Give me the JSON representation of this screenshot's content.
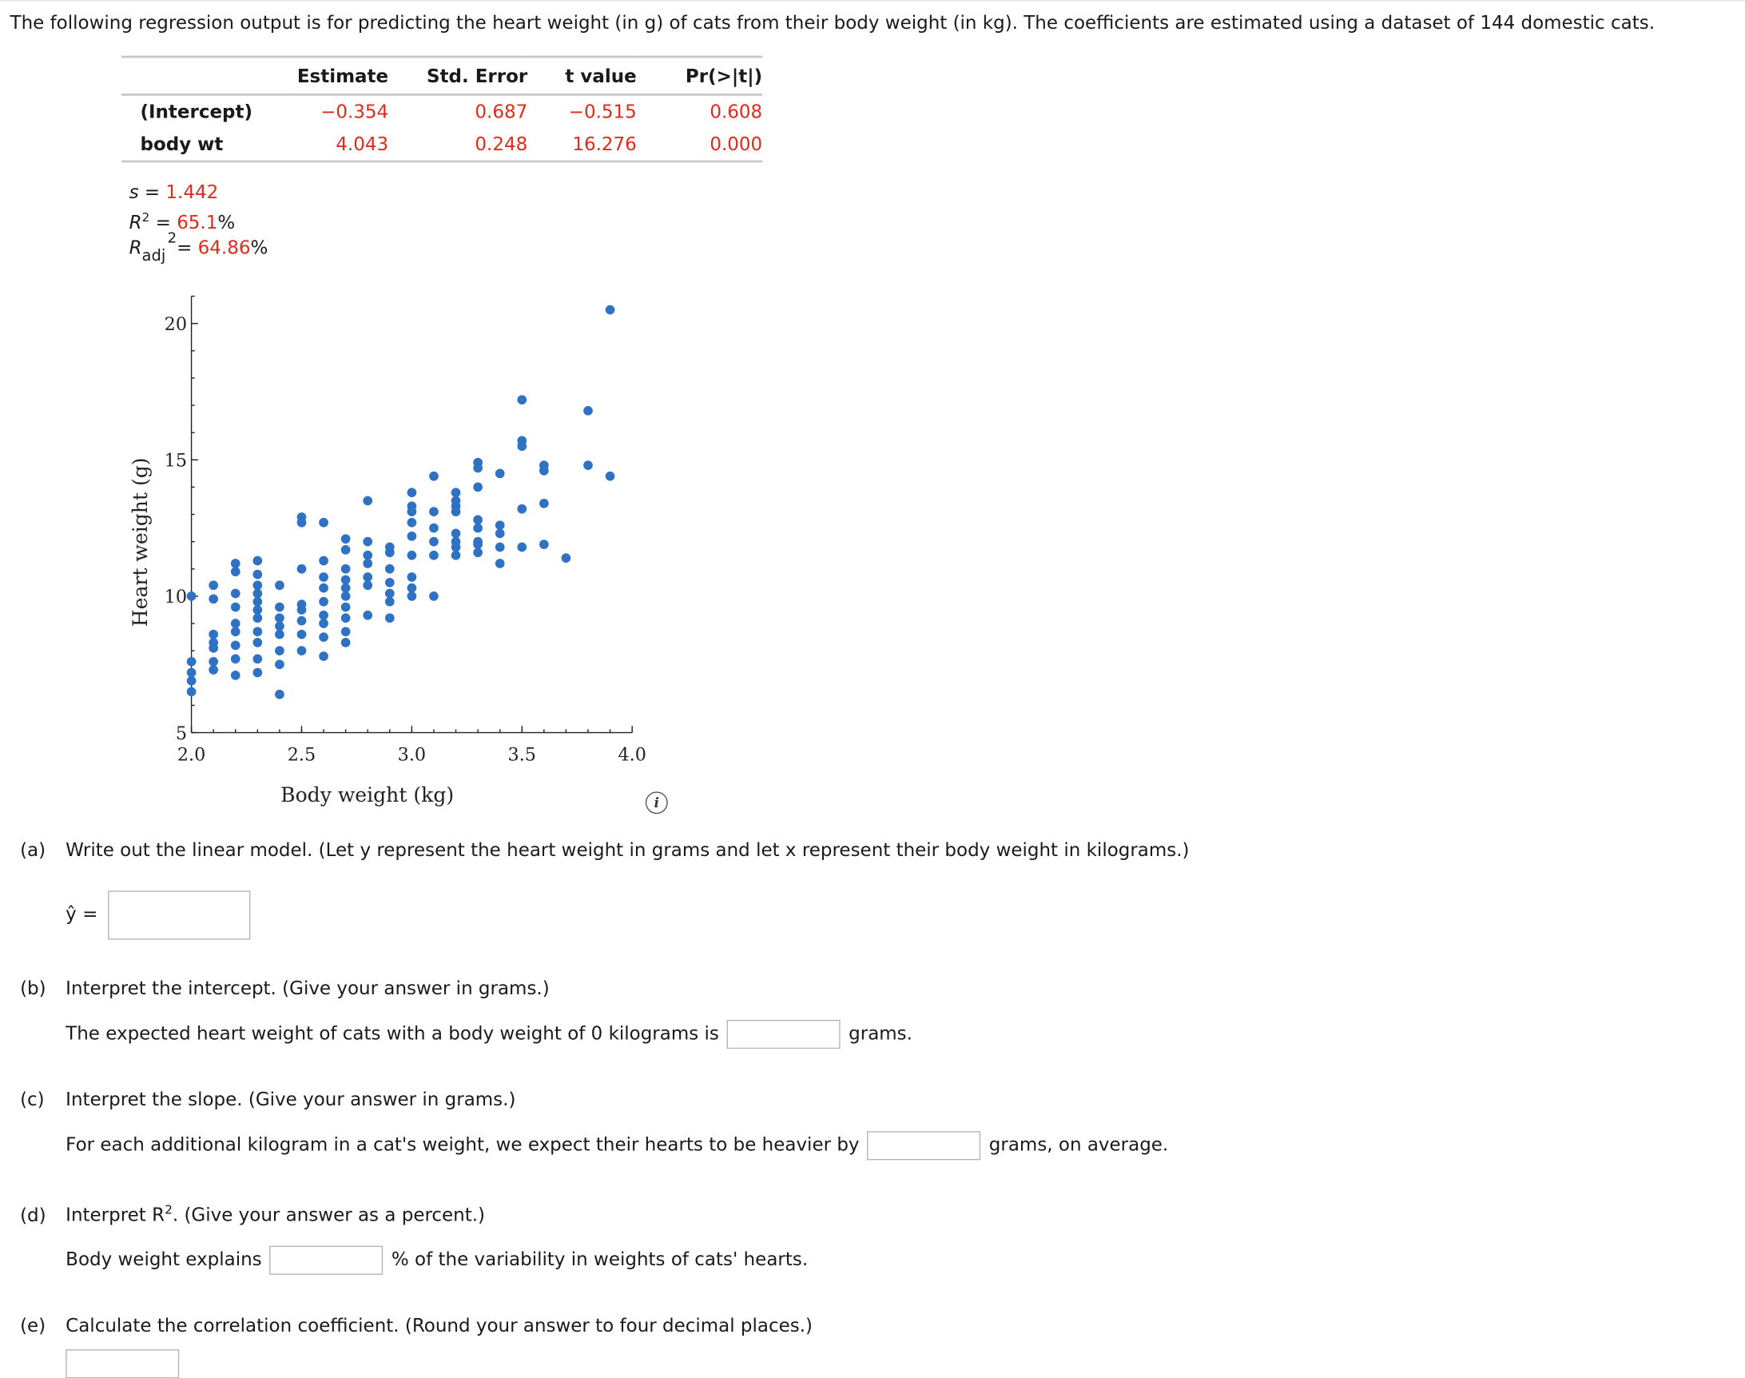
{
  "intro_text": "The following regression output is for predicting the heart weight (in g) of cats from their body weight (in kg). The coefficients are estimated using a dataset of 144 domestic cats.",
  "regression_table": {
    "headers": [
      "",
      "Estimate",
      "Std. Error",
      "t value",
      "Pr(>|t|)"
    ],
    "rows": [
      {
        "label": "(Intercept)",
        "estimate": "−0.354",
        "std_error": "0.687",
        "t_value": "−0.515",
        "p_value": "0.608"
      },
      {
        "label": "body wt",
        "estimate": "4.043",
        "std_error": "0.248",
        "t_value": "16.276",
        "p_value": "0.000"
      }
    ]
  },
  "stats": {
    "s_label": "s =",
    "s_value": "1.442",
    "r2_label": "R",
    "r2_sup": "2",
    "r2_eq": "=",
    "r2_value": "65.1",
    "r2_unit": "%",
    "radj_label": "R",
    "radj_sub": "adj",
    "radj_sup": "2",
    "radj_eq": "=",
    "radj_value": "64.86",
    "radj_unit": "%"
  },
  "chart_data": {
    "type": "scatter",
    "xlabel": "Body weight (kg)",
    "ylabel": "Heart weight (g)",
    "xlim": [
      2.0,
      4.0
    ],
    "ylim": [
      5,
      21
    ],
    "x_ticks": [
      "2.0",
      "2.5",
      "3.0",
      "3.5",
      "4.0"
    ],
    "y_ticks": [
      "5",
      "10",
      "15",
      "20"
    ],
    "marker_color": "#2f72c4",
    "points": [
      [
        2.0,
        6.5
      ],
      [
        2.0,
        6.9
      ],
      [
        2.0,
        7.2
      ],
      [
        2.0,
        7.6
      ],
      [
        2.0,
        10.0
      ],
      [
        2.1,
        7.3
      ],
      [
        2.1,
        7.6
      ],
      [
        2.1,
        8.1
      ],
      [
        2.1,
        8.3
      ],
      [
        2.1,
        8.6
      ],
      [
        2.1,
        9.9
      ],
      [
        2.1,
        10.4
      ],
      [
        2.2,
        7.1
      ],
      [
        2.2,
        7.7
      ],
      [
        2.2,
        8.2
      ],
      [
        2.2,
        8.7
      ],
      [
        2.2,
        9.0
      ],
      [
        2.2,
        9.6
      ],
      [
        2.2,
        10.1
      ],
      [
        2.2,
        10.9
      ],
      [
        2.2,
        11.2
      ],
      [
        2.3,
        7.2
      ],
      [
        2.3,
        7.7
      ],
      [
        2.3,
        8.3
      ],
      [
        2.3,
        8.7
      ],
      [
        2.3,
        9.2
      ],
      [
        2.3,
        9.5
      ],
      [
        2.3,
        9.8
      ],
      [
        2.3,
        10.1
      ],
      [
        2.3,
        10.4
      ],
      [
        2.3,
        10.8
      ],
      [
        2.3,
        11.3
      ],
      [
        2.4,
        6.4
      ],
      [
        2.4,
        7.5
      ],
      [
        2.4,
        8.0
      ],
      [
        2.4,
        8.6
      ],
      [
        2.4,
        8.9
      ],
      [
        2.4,
        9.2
      ],
      [
        2.4,
        9.6
      ],
      [
        2.4,
        10.4
      ],
      [
        2.5,
        8.0
      ],
      [
        2.5,
        8.6
      ],
      [
        2.5,
        9.1
      ],
      [
        2.5,
        9.5
      ],
      [
        2.5,
        9.7
      ],
      [
        2.5,
        11.0
      ],
      [
        2.5,
        12.7
      ],
      [
        2.5,
        12.9
      ],
      [
        2.6,
        7.8
      ],
      [
        2.6,
        8.5
      ],
      [
        2.6,
        9.0
      ],
      [
        2.6,
        9.3
      ],
      [
        2.6,
        9.8
      ],
      [
        2.6,
        10.3
      ],
      [
        2.6,
        10.7
      ],
      [
        2.6,
        11.3
      ],
      [
        2.6,
        12.7
      ],
      [
        2.7,
        8.3
      ],
      [
        2.7,
        8.7
      ],
      [
        2.7,
        9.2
      ],
      [
        2.7,
        9.6
      ],
      [
        2.7,
        10.0
      ],
      [
        2.7,
        10.3
      ],
      [
        2.7,
        10.6
      ],
      [
        2.7,
        11.0
      ],
      [
        2.7,
        11.7
      ],
      [
        2.7,
        12.1
      ],
      [
        2.8,
        9.3
      ],
      [
        2.8,
        10.4
      ],
      [
        2.8,
        10.7
      ],
      [
        2.8,
        11.2
      ],
      [
        2.8,
        11.5
      ],
      [
        2.8,
        12.0
      ],
      [
        2.8,
        13.5
      ],
      [
        2.9,
        9.2
      ],
      [
        2.9,
        9.8
      ],
      [
        2.9,
        10.1
      ],
      [
        2.9,
        10.5
      ],
      [
        2.9,
        11.0
      ],
      [
        2.9,
        11.6
      ],
      [
        2.9,
        11.8
      ],
      [
        3.0,
        10.0
      ],
      [
        3.0,
        10.3
      ],
      [
        3.0,
        10.7
      ],
      [
        3.0,
        11.5
      ],
      [
        3.0,
        12.2
      ],
      [
        3.0,
        12.7
      ],
      [
        3.0,
        13.1
      ],
      [
        3.0,
        13.3
      ],
      [
        3.0,
        13.8
      ],
      [
        3.1,
        10.0
      ],
      [
        3.1,
        11.5
      ],
      [
        3.1,
        12.0
      ],
      [
        3.1,
        12.5
      ],
      [
        3.1,
        13.1
      ],
      [
        3.1,
        14.4
      ],
      [
        3.2,
        11.5
      ],
      [
        3.2,
        11.8
      ],
      [
        3.2,
        12.0
      ],
      [
        3.2,
        12.3
      ],
      [
        3.2,
        13.1
      ],
      [
        3.2,
        13.3
      ],
      [
        3.2,
        13.5
      ],
      [
        3.2,
        13.8
      ],
      [
        3.3,
        11.6
      ],
      [
        3.3,
        11.9
      ],
      [
        3.3,
        12.0
      ],
      [
        3.3,
        12.5
      ],
      [
        3.3,
        12.8
      ],
      [
        3.3,
        14.0
      ],
      [
        3.3,
        14.7
      ],
      [
        3.3,
        14.9
      ],
      [
        3.4,
        11.2
      ],
      [
        3.4,
        11.8
      ],
      [
        3.4,
        12.3
      ],
      [
        3.4,
        12.6
      ],
      [
        3.4,
        14.5
      ],
      [
        3.5,
        11.8
      ],
      [
        3.5,
        13.2
      ],
      [
        3.5,
        15.5
      ],
      [
        3.5,
        15.7
      ],
      [
        3.5,
        17.2
      ],
      [
        3.6,
        11.9
      ],
      [
        3.6,
        13.4
      ],
      [
        3.6,
        14.6
      ],
      [
        3.6,
        14.8
      ],
      [
        3.7,
        11.4
      ],
      [
        3.8,
        14.8
      ],
      [
        3.8,
        16.8
      ],
      [
        3.9,
        14.4
      ],
      [
        3.9,
        20.5
      ]
    ]
  },
  "questions": {
    "a": {
      "label": "(a)",
      "text": "Write out the linear model. (Let y represent the heart weight in grams and let x represent their body weight in kilograms.)",
      "answer_prefix": "ŷ ="
    },
    "b": {
      "label": "(b)",
      "text": "Interpret the intercept. (Give your answer in grams.)",
      "before": "The expected heart weight of cats with a body weight of 0 kilograms is",
      "after": "grams."
    },
    "c": {
      "label": "(c)",
      "text": "Interpret the slope. (Give your answer in grams.)",
      "before": "For each additional kilogram in a cat's weight, we expect their hearts to be heavier by",
      "after": "grams, on average."
    },
    "d": {
      "label": "(d)",
      "text_prefix": "Interpret R",
      "text_sup": "2",
      "text_suffix": ". (Give your answer as a percent.)",
      "before": "Body weight explains",
      "after": "% of the variability in weights of cats' hearts."
    },
    "e": {
      "label": "(e)",
      "text": "Calculate the correlation coefficient. (Round your answer to four decimal places.)"
    }
  }
}
